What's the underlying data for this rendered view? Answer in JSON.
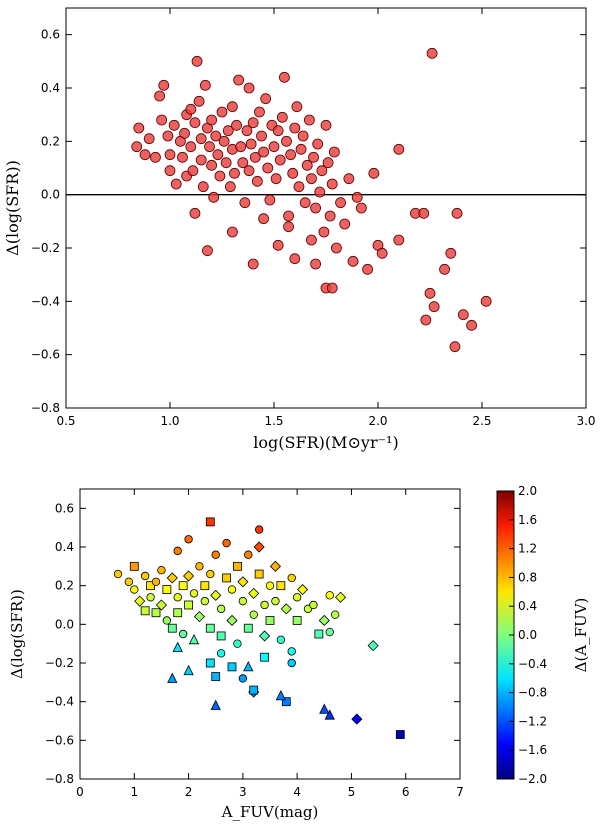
{
  "chart_data": [
    {
      "type": "scatter",
      "xlabel": "log(SFR)(M⊙yr⁻¹)",
      "ylabel": "Δ(log(SFR))",
      "xlim": [
        0.5,
        3.0
      ],
      "ylim": [
        -0.8,
        0.7
      ],
      "xticks": [
        "0.5",
        "1.0",
        "1.5",
        "2.0",
        "2.5",
        "3.0"
      ],
      "yticks": [
        "−0.8",
        "−0.6",
        "−0.4",
        "−0.2",
        "0.0",
        "0.2",
        "0.4",
        "0.6"
      ],
      "reference_line": 0.0,
      "marker_color": "#e83a3a",
      "points": [
        [
          0.84,
          0.18
        ],
        [
          0.85,
          0.25
        ],
        [
          0.88,
          0.15
        ],
        [
          0.9,
          0.21
        ],
        [
          0.93,
          0.14
        ],
        [
          0.95,
          0.37
        ],
        [
          0.96,
          0.28
        ],
        [
          0.97,
          0.41
        ],
        [
          0.99,
          0.22
        ],
        [
          1.0,
          0.15
        ],
        [
          1.0,
          0.09
        ],
        [
          1.02,
          0.26
        ],
        [
          1.03,
          0.04
        ],
        [
          1.05,
          0.2
        ],
        [
          1.06,
          0.14
        ],
        [
          1.07,
          0.23
        ],
        [
          1.08,
          0.3
        ],
        [
          1.08,
          0.07
        ],
        [
          1.1,
          0.32
        ],
        [
          1.1,
          0.18
        ],
        [
          1.11,
          0.09
        ],
        [
          1.12,
          0.27
        ],
        [
          1.13,
          0.5
        ],
        [
          1.14,
          0.35
        ],
        [
          1.15,
          0.21
        ],
        [
          1.15,
          0.13
        ],
        [
          1.16,
          0.03
        ],
        [
          1.17,
          0.41
        ],
        [
          1.18,
          0.25
        ],
        [
          1.19,
          0.18
        ],
        [
          1.2,
          0.11
        ],
        [
          1.2,
          0.28
        ],
        [
          1.21,
          -0.01
        ],
        [
          1.22,
          0.22
        ],
        [
          1.23,
          0.15
        ],
        [
          1.24,
          0.07
        ],
        [
          1.25,
          0.31
        ],
        [
          1.26,
          0.2
        ],
        [
          1.27,
          0.12
        ],
        [
          1.28,
          0.24
        ],
        [
          1.29,
          0.03
        ],
        [
          1.3,
          0.17
        ],
        [
          1.3,
          0.33
        ],
        [
          1.31,
          0.08
        ],
        [
          1.32,
          0.26
        ],
        [
          1.33,
          0.43
        ],
        [
          1.34,
          0.18
        ],
        [
          1.35,
          0.12
        ],
        [
          1.36,
          -0.03
        ],
        [
          1.37,
          0.24
        ],
        [
          1.38,
          0.4
        ],
        [
          1.38,
          0.09
        ],
        [
          1.39,
          0.19
        ],
        [
          1.4,
          0.27
        ],
        [
          1.41,
          0.14
        ],
        [
          1.42,
          0.05
        ],
        [
          1.43,
          0.31
        ],
        [
          1.44,
          0.22
        ],
        [
          1.45,
          0.16
        ],
        [
          1.46,
          0.36
        ],
        [
          1.47,
          0.1
        ],
        [
          1.48,
          -0.02
        ],
        [
          1.49,
          0.26
        ],
        [
          1.5,
          0.18
        ],
        [
          1.51,
          0.06
        ],
        [
          1.52,
          0.24
        ],
        [
          1.53,
          0.13
        ],
        [
          1.54,
          0.29
        ],
        [
          1.55,
          0.44
        ],
        [
          1.56,
          0.2
        ],
        [
          1.57,
          -0.08
        ],
        [
          1.58,
          0.15
        ],
        [
          1.59,
          0.08
        ],
        [
          1.6,
          0.25
        ],
        [
          1.61,
          0.33
        ],
        [
          1.62,
          0.03
        ],
        [
          1.63,
          0.17
        ],
        [
          1.64,
          0.22
        ],
        [
          1.65,
          -0.03
        ],
        [
          1.66,
          0.11
        ],
        [
          1.67,
          0.28
        ],
        [
          1.68,
          0.06
        ],
        [
          1.69,
          0.14
        ],
        [
          1.7,
          -0.05
        ],
        [
          1.71,
          0.19
        ],
        [
          1.72,
          0.01
        ],
        [
          1.73,
          0.09
        ],
        [
          1.74,
          -0.14
        ],
        [
          1.75,
          0.26
        ],
        [
          1.76,
          0.12
        ],
        [
          1.77,
          -0.08
        ],
        [
          1.78,
          0.04
        ],
        [
          1.79,
          0.16
        ],
        [
          1.8,
          -0.2
        ],
        [
          1.82,
          -0.03
        ],
        [
          1.84,
          -0.11
        ],
        [
          1.86,
          0.06
        ],
        [
          1.88,
          -0.25
        ],
        [
          1.9,
          -0.01
        ],
        [
          1.92,
          -0.05
        ],
        [
          1.95,
          -0.28
        ],
        [
          1.98,
          0.08
        ],
        [
          2.0,
          -0.19
        ],
        [
          2.02,
          -0.22
        ],
        [
          2.1,
          -0.17
        ],
        [
          2.1,
          0.17
        ],
        [
          2.18,
          -0.07
        ],
        [
          2.22,
          -0.07
        ],
        [
          2.23,
          -0.47
        ],
        [
          2.25,
          -0.37
        ],
        [
          2.26,
          0.53
        ],
        [
          2.27,
          -0.42
        ],
        [
          2.32,
          -0.28
        ],
        [
          2.35,
          -0.22
        ],
        [
          2.37,
          -0.57
        ],
        [
          2.38,
          -0.07
        ],
        [
          2.41,
          -0.45
        ],
        [
          2.45,
          -0.49
        ],
        [
          2.52,
          -0.4
        ],
        [
          1.18,
          -0.21
        ],
        [
          1.4,
          -0.26
        ],
        [
          1.6,
          -0.24
        ],
        [
          1.75,
          -0.35
        ],
        [
          1.78,
          -0.35
        ],
        [
          1.7,
          -0.26
        ],
        [
          1.52,
          -0.19
        ],
        [
          1.3,
          -0.14
        ],
        [
          1.12,
          -0.07
        ],
        [
          1.45,
          -0.09
        ],
        [
          1.68,
          -0.17
        ],
        [
          1.57,
          -0.12
        ]
      ]
    },
    {
      "type": "scatter",
      "xlabel": "A_FUV(mag)",
      "ylabel": "Δ(log(SFR))",
      "xlim": [
        0,
        7
      ],
      "ylim": [
        -0.8,
        0.7
      ],
      "xticks": [
        "0",
        "1",
        "2",
        "3",
        "4",
        "5",
        "6",
        "7"
      ],
      "yticks": [
        "−0.8",
        "−0.6",
        "−0.4",
        "−0.2",
        "0.0",
        "0.2",
        "0.4",
        "0.6"
      ],
      "colorbar": {
        "label": "Δ(A_FUV)",
        "range": [
          -2.0,
          2.0
        ],
        "ticks": [
          "−2.0",
          "−1.6",
          "−1.2",
          "−0.8",
          "−0.4",
          "0.0",
          "0.4",
          "0.8",
          "1.2",
          "1.6",
          "2.0"
        ]
      },
      "points": [
        [
          0.7,
          0.26,
          0.7,
          "circle"
        ],
        [
          0.9,
          0.22,
          0.7,
          "circle"
        ],
        [
          1.0,
          0.3,
          0.9,
          "square"
        ],
        [
          1.0,
          0.18,
          0.5,
          "circle"
        ],
        [
          1.1,
          0.12,
          0.4,
          "diamond"
        ],
        [
          1.2,
          0.25,
          0.7,
          "circle"
        ],
        [
          1.2,
          0.07,
          0.3,
          "square"
        ],
        [
          1.3,
          0.2,
          0.6,
          "square"
        ],
        [
          1.3,
          0.14,
          0.3,
          "circle"
        ],
        [
          1.4,
          0.22,
          0.8,
          "circle"
        ],
        [
          1.4,
          0.06,
          0.2,
          "square"
        ],
        [
          1.5,
          0.28,
          0.8,
          "circle"
        ],
        [
          1.5,
          0.1,
          0.3,
          "diamond"
        ],
        [
          1.6,
          0.18,
          0.5,
          "square"
        ],
        [
          1.6,
          0.02,
          0.1,
          "circle"
        ],
        [
          1.7,
          0.24,
          0.7,
          "diamond"
        ],
        [
          1.7,
          -0.02,
          -0.1,
          "square"
        ],
        [
          1.8,
          0.38,
          1.0,
          "circle"
        ],
        [
          1.8,
          0.14,
          0.4,
          "circle"
        ],
        [
          1.8,
          0.06,
          0.2,
          "square"
        ],
        [
          1.9,
          0.2,
          0.5,
          "square"
        ],
        [
          1.9,
          -0.05,
          -0.1,
          "circle"
        ],
        [
          2.0,
          0.44,
          1.1,
          "circle"
        ],
        [
          2.0,
          0.25,
          0.7,
          "diamond"
        ],
        [
          2.0,
          0.1,
          0.3,
          "square"
        ],
        [
          2.1,
          0.16,
          0.4,
          "circle"
        ],
        [
          2.1,
          -0.08,
          -0.2,
          "triangle"
        ],
        [
          2.2,
          0.3,
          0.8,
          "circle"
        ],
        [
          2.2,
          0.04,
          0.1,
          "diamond"
        ],
        [
          2.3,
          0.2,
          0.6,
          "square"
        ],
        [
          2.3,
          0.12,
          0.3,
          "circle"
        ],
        [
          2.4,
          0.53,
          1.3,
          "square"
        ],
        [
          2.4,
          0.26,
          0.7,
          "circle"
        ],
        [
          2.4,
          -0.02,
          -0.1,
          "square"
        ],
        [
          2.5,
          0.36,
          1.0,
          "circle"
        ],
        [
          2.5,
          0.15,
          0.4,
          "diamond"
        ],
        [
          2.6,
          0.08,
          0.2,
          "circle"
        ],
        [
          2.6,
          -0.06,
          -0.2,
          "square"
        ],
        [
          2.7,
          0.24,
          0.7,
          "square"
        ],
        [
          2.7,
          0.42,
          1.1,
          "circle"
        ],
        [
          2.8,
          0.18,
          0.5,
          "circle"
        ],
        [
          2.8,
          0.02,
          0.1,
          "diamond"
        ],
        [
          2.9,
          0.3,
          0.8,
          "square"
        ],
        [
          2.9,
          -0.1,
          -0.3,
          "circle"
        ],
        [
          3.0,
          0.12,
          0.3,
          "circle"
        ],
        [
          3.0,
          0.22,
          0.6,
          "diamond"
        ],
        [
          3.1,
          0.36,
          1.0,
          "circle"
        ],
        [
          3.1,
          -0.02,
          -0.1,
          "square"
        ],
        [
          3.2,
          0.16,
          0.4,
          "diamond"
        ],
        [
          3.2,
          0.05,
          0.2,
          "circle"
        ],
        [
          3.3,
          0.49,
          1.3,
          "circle"
        ],
        [
          3.3,
          0.4,
          1.2,
          "diamond"
        ],
        [
          3.3,
          0.26,
          0.7,
          "square"
        ],
        [
          3.4,
          0.1,
          0.3,
          "circle"
        ],
        [
          3.4,
          -0.06,
          -0.2,
          "diamond"
        ],
        [
          3.5,
          0.2,
          0.5,
          "circle"
        ],
        [
          3.5,
          0.02,
          0.1,
          "square"
        ],
        [
          3.6,
          0.3,
          0.8,
          "diamond"
        ],
        [
          3.6,
          0.12,
          0.3,
          "circle"
        ],
        [
          3.7,
          -0.08,
          -0.3,
          "circle"
        ],
        [
          3.7,
          0.2,
          0.6,
          "square"
        ],
        [
          3.8,
          0.08,
          0.2,
          "diamond"
        ],
        [
          3.9,
          0.24,
          0.7,
          "circle"
        ],
        [
          3.9,
          -0.14,
          -0.4,
          "circle"
        ],
        [
          4.0,
          0.14,
          0.4,
          "circle"
        ],
        [
          4.0,
          0.02,
          0.1,
          "square"
        ],
        [
          4.1,
          0.18,
          0.5,
          "diamond"
        ],
        [
          4.2,
          0.08,
          0.3,
          "circle"
        ],
        [
          4.3,
          0.1,
          0.3,
          "circle"
        ],
        [
          4.4,
          -0.05,
          -0.2,
          "square"
        ],
        [
          4.5,
          0.02,
          0.1,
          "diamond"
        ],
        [
          4.6,
          -0.04,
          -0.1,
          "circle"
        ],
        [
          4.6,
          0.15,
          0.5,
          "circle"
        ],
        [
          4.7,
          0.05,
          0.2,
          "circle"
        ],
        [
          4.8,
          0.14,
          0.4,
          "diamond"
        ],
        [
          5.4,
          -0.11,
          -0.2,
          "diamond"
        ],
        [
          1.8,
          -0.12,
          -0.6,
          "triangle"
        ],
        [
          2.0,
          -0.24,
          -0.7,
          "triangle"
        ],
        [
          1.7,
          -0.28,
          -0.9,
          "triangle"
        ],
        [
          2.4,
          -0.2,
          -0.6,
          "square"
        ],
        [
          2.5,
          -0.27,
          -0.8,
          "square"
        ],
        [
          2.8,
          -0.22,
          -0.7,
          "square"
        ],
        [
          3.0,
          -0.28,
          -0.9,
          "circle"
        ],
        [
          3.2,
          -0.35,
          -0.9,
          "diamond"
        ],
        [
          3.1,
          -0.22,
          -0.8,
          "triangle"
        ],
        [
          2.5,
          -0.42,
          -1.1,
          "triangle"
        ],
        [
          3.8,
          -0.4,
          -1.0,
          "square"
        ],
        [
          3.7,
          -0.37,
          -1.0,
          "triangle"
        ],
        [
          3.9,
          -0.2,
          -0.7,
          "circle"
        ],
        [
          4.5,
          -0.44,
          -1.2,
          "triangle"
        ],
        [
          4.6,
          -0.47,
          -1.3,
          "triangle"
        ],
        [
          5.1,
          -0.49,
          -1.5,
          "diamond"
        ],
        [
          5.9,
          -0.57,
          -1.8,
          "square"
        ],
        [
          3.2,
          -0.34,
          -0.8,
          "square"
        ],
        [
          3.4,
          -0.17,
          -0.5,
          "square"
        ],
        [
          2.6,
          -0.15,
          -0.4,
          "circle"
        ]
      ]
    }
  ]
}
